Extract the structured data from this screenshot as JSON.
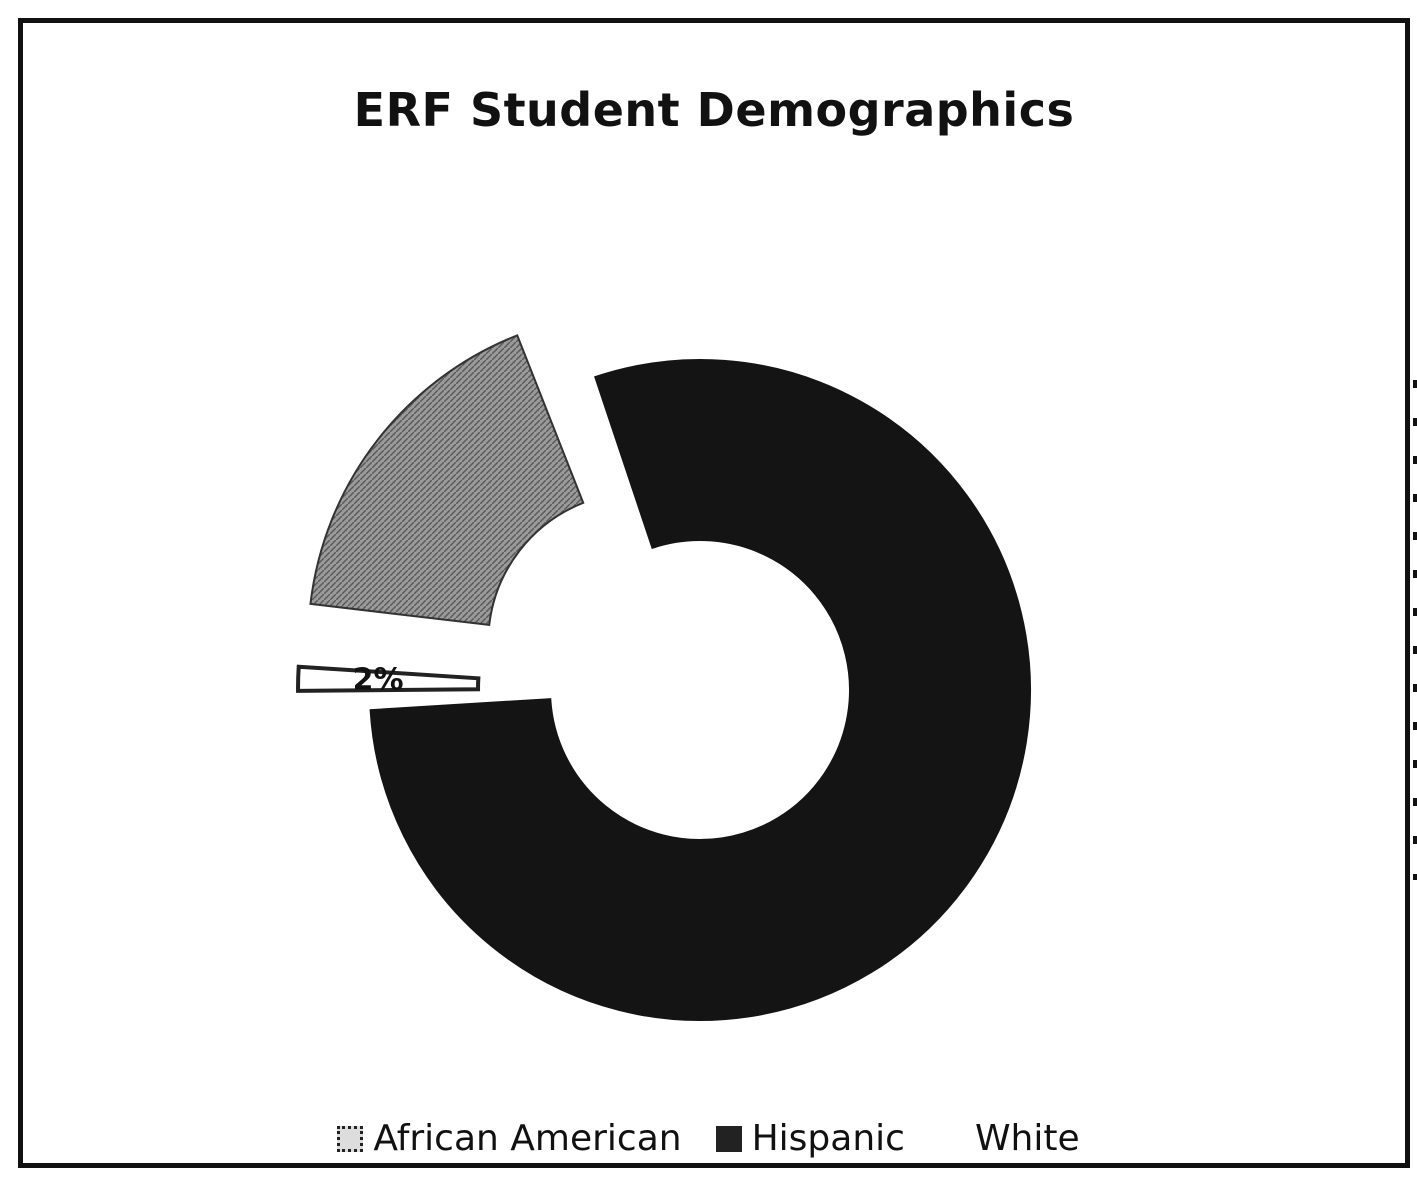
{
  "chart_data": {
    "type": "pie",
    "variant": "exploded-donut",
    "title": "ERF Student Demographics",
    "categories": [
      "African American",
      "Hispanic",
      "White"
    ],
    "values": [
      80,
      18,
      2
    ],
    "data_labels": [
      "",
      "",
      "2%"
    ],
    "colors": [
      "#141414",
      "#9a9a9a",
      "#ffffff"
    ],
    "legend": "bottom",
    "xlabel": "",
    "ylabel": ""
  }
}
